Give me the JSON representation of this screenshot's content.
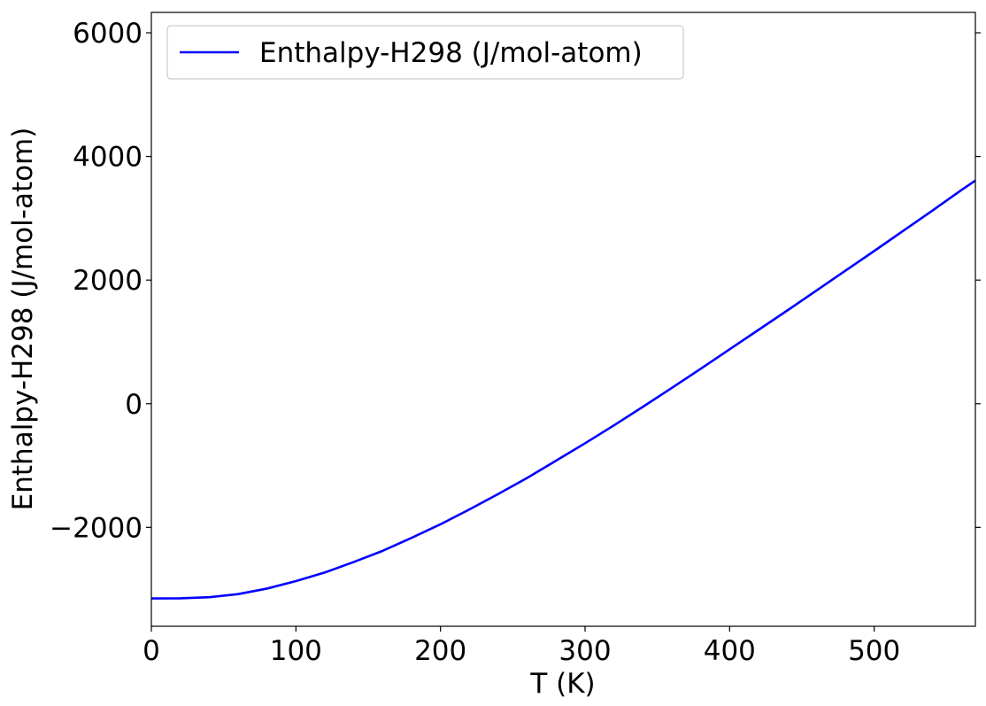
{
  "chart_data": {
    "type": "line",
    "title": "",
    "xlabel": "T (K)",
    "ylabel": "Enthalpy-H298 (J/mol-atom)",
    "xlim": [
      0,
      570
    ],
    "ylim": [
      -3600,
      6330
    ],
    "x_ticks": [
      0,
      100,
      200,
      300,
      400,
      500
    ],
    "y_ticks": [
      -2000,
      0,
      2000,
      4000,
      6000
    ],
    "x_tick_labels": [
      "0",
      "100",
      "200",
      "300",
      "400",
      "500"
    ],
    "y_tick_labels": [
      "−2000",
      "0",
      "2000",
      "4000",
      "6000"
    ],
    "grid": false,
    "legend_position": "top-left",
    "series": [
      {
        "name": "Enthalpy-H298 (J/mol-atom)",
        "color": "#0000ff",
        "x": [
          0,
          20,
          40,
          60,
          80,
          100,
          120,
          140,
          160,
          180,
          200,
          220,
          240,
          260,
          280,
          300,
          320,
          340,
          360,
          380,
          400,
          420,
          440,
          460,
          480,
          500,
          520,
          540,
          560,
          570
        ],
        "y": [
          -3150,
          -3148,
          -3130,
          -3080,
          -2990,
          -2870,
          -2730,
          -2560,
          -2380,
          -2170,
          -1950,
          -1710,
          -1460,
          -1200,
          -920,
          -640,
          -350,
          -50,
          255,
          565,
          880,
          1195,
          1510,
          1830,
          2150,
          2470,
          2795,
          3120,
          3450,
          3610
        ]
      }
    ]
  }
}
